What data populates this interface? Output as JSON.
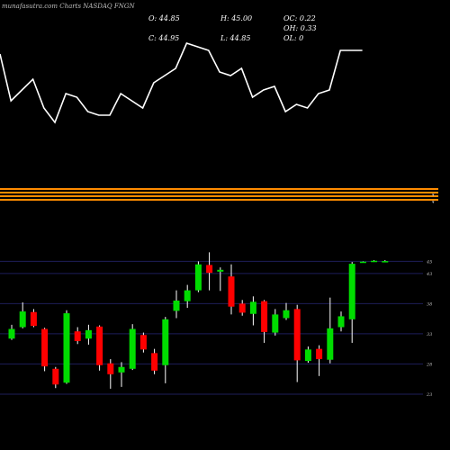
{
  "title": "munafasutra.com Charts NASDAQ FNGN",
  "stats": {
    "open": "O: 44.85",
    "high": "H: 45.00",
    "oc": "OC: 0.22",
    "close": "C: 44.95",
    "low": "L: 44.85",
    "oh": "OH: 0.33",
    "ol": "OL: 0"
  },
  "colors": {
    "background": "#000000",
    "up": "#00dd00",
    "down": "#ff0000",
    "wick": "#ffffff",
    "line": "#ffffff",
    "grid": "#1e1e5a",
    "band": "#ff8c00"
  },
  "chart_data": [
    {
      "type": "line",
      "panel": "indicator",
      "values": [
        0.35,
        0.22,
        0.25,
        0.28,
        0.2,
        0.16,
        0.24,
        0.23,
        0.19,
        0.18,
        0.18,
        0.24,
        0.22,
        0.2,
        0.27,
        0.29,
        0.31,
        0.38,
        0.37,
        0.36,
        0.3,
        0.29,
        0.31,
        0.23,
        0.25,
        0.26,
        0.19,
        0.21,
        0.2,
        0.24,
        0.25,
        0.36,
        0.36,
        0.36
      ]
    },
    {
      "type": "candlestick",
      "panel": "price",
      "yticks": [
        23,
        28,
        33,
        38,
        43,
        45
      ],
      "ylim": [
        21.5,
        47
      ],
      "series": [
        {
          "open": 32.2,
          "close": 33.8,
          "high": 34.5,
          "low": 32.0
        },
        {
          "open": 34.1,
          "close": 36.7,
          "high": 38.2,
          "low": 33.9
        },
        {
          "open": 36.6,
          "close": 34.3,
          "high": 37.1,
          "low": 34.1
        },
        {
          "open": 33.8,
          "close": 27.6,
          "high": 34.0,
          "low": 26.8
        },
        {
          "open": 27.2,
          "close": 24.6,
          "high": 27.5,
          "low": 24.0
        },
        {
          "open": 24.9,
          "close": 36.4,
          "high": 36.9,
          "low": 24.7
        },
        {
          "open": 33.4,
          "close": 31.8,
          "high": 34.1,
          "low": 31.3
        },
        {
          "open": 32.2,
          "close": 33.6,
          "high": 34.5,
          "low": 31.2
        },
        {
          "open": 34.2,
          "close": 27.8,
          "high": 34.4,
          "low": 26.9
        },
        {
          "open": 28.1,
          "close": 26.3,
          "high": 28.8,
          "low": 23.9
        },
        {
          "open": 26.6,
          "close": 27.5,
          "high": 28.3,
          "low": 24.2
        },
        {
          "open": 27.2,
          "close": 33.8,
          "high": 34.6,
          "low": 27.0
        },
        {
          "open": 32.8,
          "close": 30.4,
          "high": 33.2,
          "low": 29.9
        },
        {
          "open": 29.8,
          "close": 26.9,
          "high": 30.5,
          "low": 26.3
        },
        {
          "open": 27.8,
          "close": 35.4,
          "high": 35.8,
          "low": 24.8
        },
        {
          "open": 36.8,
          "close": 38.5,
          "high": 40.2,
          "low": 35.6
        },
        {
          "open": 38.4,
          "close": 40.2,
          "high": 41.1,
          "low": 37.3
        },
        {
          "open": 40.2,
          "close": 44.5,
          "high": 45.0,
          "low": 39.9
        },
        {
          "open": 44.4,
          "close": 43.1,
          "high": 46.5,
          "low": 40.2
        },
        {
          "open": 43.3,
          "close": 43.6,
          "high": 44.0,
          "low": 40.1
        },
        {
          "open": 42.5,
          "close": 37.5,
          "high": 44.5,
          "low": 36.2
        },
        {
          "open": 38.0,
          "close": 36.5,
          "high": 38.6,
          "low": 36.0
        },
        {
          "open": 36.3,
          "close": 38.3,
          "high": 39.2,
          "low": 34.4
        },
        {
          "open": 38.4,
          "close": 33.3,
          "high": 38.6,
          "low": 31.5
        },
        {
          "open": 33.2,
          "close": 36.2,
          "high": 37.1,
          "low": 32.7
        },
        {
          "open": 35.6,
          "close": 36.9,
          "high": 38.1,
          "low": 35.3
        },
        {
          "open": 37.1,
          "close": 28.6,
          "high": 37.8,
          "low": 25.0
        },
        {
          "open": 28.5,
          "close": 30.4,
          "high": 30.9,
          "low": 28.2
        },
        {
          "open": 30.5,
          "close": 28.8,
          "high": 31.1,
          "low": 26.0
        },
        {
          "open": 28.7,
          "close": 33.9,
          "high": 39.0,
          "low": 28.1
        },
        {
          "open": 34.1,
          "close": 35.9,
          "high": 36.7,
          "low": 33.4
        },
        {
          "open": 35.4,
          "close": 44.6,
          "high": 44.9,
          "low": 31.5
        },
        {
          "open": 44.85,
          "close": 44.95,
          "high": 45.0,
          "low": 44.85
        },
        {
          "open": 44.9,
          "close": 45.1,
          "high": 45.2,
          "low": 44.9
        },
        {
          "open": 45.0,
          "close": 45.05,
          "high": 45.2,
          "low": 45.0
        }
      ]
    }
  ]
}
